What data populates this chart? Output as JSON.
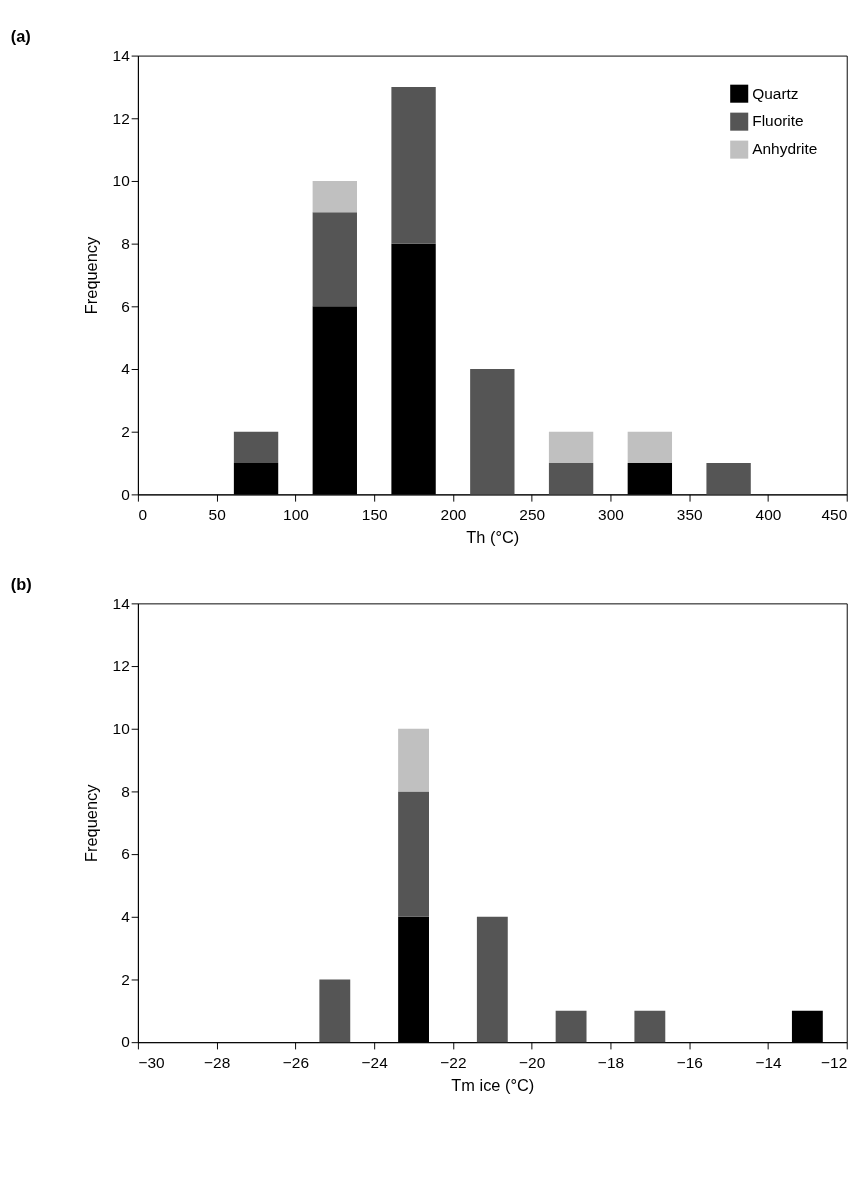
{
  "chart_data": [
    {
      "type": "bar",
      "title": "(a)",
      "xlabel": "Th (°C)",
      "ylabel": "Frequency",
      "stacked": true,
      "x": [
        75,
        125,
        175,
        225,
        275,
        325,
        375
      ],
      "series": [
        {
          "name": "Quartz",
          "color": "#000000",
          "values": [
            1,
            6,
            8,
            0,
            0,
            1,
            0
          ]
        },
        {
          "name": "Fluorite",
          "color": "#555555",
          "values": [
            1,
            3,
            5,
            4,
            1,
            0,
            1
          ]
        },
        {
          "name": "Anhydrite",
          "color": "#c0c0c0",
          "values": [
            0,
            1,
            0,
            0,
            1,
            1,
            0
          ]
        }
      ],
      "xlim": [
        0,
        450
      ],
      "xticks": [
        0,
        50,
        100,
        150,
        200,
        250,
        300,
        350,
        400,
        450
      ],
      "ylim": [
        0,
        14
      ],
      "yticks": [
        0,
        2,
        4,
        6,
        8,
        10,
        12,
        14
      ],
      "grid": false,
      "legend": "top right"
    },
    {
      "type": "bar",
      "title": "(b)",
      "xlabel": "Tm ice (°C)",
      "ylabel": "Frequency",
      "stacked": true,
      "x": [
        -25,
        -23,
        -21,
        -19,
        -17,
        -13
      ],
      "series": [
        {
          "color": "#000000",
          "values": [
            0,
            4,
            0,
            0,
            0,
            1
          ]
        },
        {
          "color": "#555555",
          "values": [
            2,
            4,
            4,
            1,
            1,
            0
          ]
        },
        {
          "color": "#c0c0c0",
          "values": [
            0,
            2,
            0,
            0,
            0,
            0
          ]
        }
      ],
      "xlim": [
        -30,
        -12
      ],
      "xticks": [
        -30,
        -28,
        -26,
        -24,
        -22,
        -20,
        -18,
        -16,
        -14,
        -12
      ],
      "ylim": [
        0,
        14
      ],
      "yticks": [
        0,
        2,
        4,
        6,
        8,
        10,
        12,
        14
      ],
      "grid": false
    }
  ]
}
